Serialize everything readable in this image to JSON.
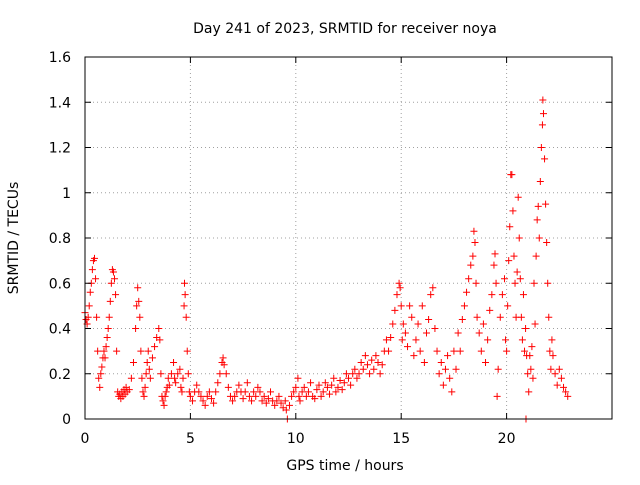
{
  "chart_data": {
    "type": "scatter",
    "title": "Day 241 of 2023, SRMTID for receiver noya",
    "xlabel": "GPS time / hours",
    "ylabel": "SRMTID / TECUs",
    "xlim": [
      0,
      25
    ],
    "ylim": [
      0,
      1.6
    ],
    "x_ticks": [
      0,
      5,
      10,
      15,
      20
    ],
    "x_tick_labels": [
      "0",
      "5",
      "10",
      "15",
      "20"
    ],
    "y_ticks": [
      0,
      0.2,
      0.4,
      0.6,
      0.8,
      1.0,
      1.2,
      1.4,
      1.6
    ],
    "y_tick_labels": [
      "0",
      "0.2",
      "0.4",
      "0.6",
      "0.8",
      "1",
      "1.2",
      "1.4",
      "1.6"
    ],
    "grid": true,
    "marker": "plus",
    "color": "#ff0000",
    "series": [
      {
        "name": "SRMTID",
        "points": [
          [
            0.0,
            0.47
          ],
          [
            0.05,
            0.44
          ],
          [
            0.1,
            0.42
          ],
          [
            0.15,
            0.45
          ],
          [
            0.2,
            0.5
          ],
          [
            0.25,
            0.56
          ],
          [
            0.3,
            0.6
          ],
          [
            0.35,
            0.66
          ],
          [
            0.4,
            0.7
          ],
          [
            0.45,
            0.71
          ],
          [
            0.5,
            0.62
          ],
          [
            0.55,
            0.45
          ],
          [
            0.6,
            0.3
          ],
          [
            0.65,
            0.18
          ],
          [
            0.7,
            0.14
          ],
          [
            0.75,
            0.2
          ],
          [
            0.8,
            0.23
          ],
          [
            0.85,
            0.27
          ],
          [
            0.9,
            0.3
          ],
          [
            0.95,
            0.27
          ],
          [
            1.0,
            0.32
          ],
          [
            1.05,
            0.36
          ],
          [
            1.1,
            0.4
          ],
          [
            1.15,
            0.45
          ],
          [
            1.2,
            0.52
          ],
          [
            1.25,
            0.6
          ],
          [
            1.3,
            0.66
          ],
          [
            1.35,
            0.65
          ],
          [
            1.4,
            0.62
          ],
          [
            1.45,
            0.55
          ],
          [
            1.5,
            0.3
          ],
          [
            1.55,
            0.12
          ],
          [
            1.6,
            0.1
          ],
          [
            1.65,
            0.11
          ],
          [
            1.7,
            0.09
          ],
          [
            1.75,
            0.12
          ],
          [
            1.8,
            0.1
          ],
          [
            1.85,
            0.13
          ],
          [
            1.9,
            0.11
          ],
          [
            1.95,
            0.14
          ],
          [
            2.0,
            0.12
          ],
          [
            2.1,
            0.13
          ],
          [
            2.2,
            0.18
          ],
          [
            2.3,
            0.25
          ],
          [
            2.4,
            0.4
          ],
          [
            2.45,
            0.5
          ],
          [
            2.5,
            0.58
          ],
          [
            2.55,
            0.52
          ],
          [
            2.6,
            0.45
          ],
          [
            2.65,
            0.3
          ],
          [
            2.7,
            0.18
          ],
          [
            2.75,
            0.12
          ],
          [
            2.8,
            0.1
          ],
          [
            2.85,
            0.14
          ],
          [
            2.9,
            0.2
          ],
          [
            2.95,
            0.25
          ],
          [
            3.0,
            0.3
          ],
          [
            3.05,
            0.22
          ],
          [
            3.1,
            0.18
          ],
          [
            3.2,
            0.27
          ],
          [
            3.3,
            0.32
          ],
          [
            3.4,
            0.36
          ],
          [
            3.5,
            0.4
          ],
          [
            3.55,
            0.35
          ],
          [
            3.6,
            0.2
          ],
          [
            3.65,
            0.1
          ],
          [
            3.7,
            0.08
          ],
          [
            3.75,
            0.06
          ],
          [
            3.8,
            0.1
          ],
          [
            3.85,
            0.12
          ],
          [
            3.9,
            0.14
          ],
          [
            3.95,
            0.18
          ],
          [
            4.0,
            0.15
          ],
          [
            4.1,
            0.2
          ],
          [
            4.2,
            0.25
          ],
          [
            4.25,
            0.18
          ],
          [
            4.3,
            0.16
          ],
          [
            4.4,
            0.2
          ],
          [
            4.5,
            0.22
          ],
          [
            4.55,
            0.14
          ],
          [
            4.6,
            0.12
          ],
          [
            4.65,
            0.18
          ],
          [
            4.7,
            0.5
          ],
          [
            4.72,
            0.6
          ],
          [
            4.75,
            0.55
          ],
          [
            4.8,
            0.45
          ],
          [
            4.85,
            0.3
          ],
          [
            4.9,
            0.2
          ],
          [
            4.95,
            0.12
          ],
          [
            5.0,
            0.1
          ],
          [
            5.1,
            0.08
          ],
          [
            5.2,
            0.12
          ],
          [
            5.3,
            0.15
          ],
          [
            5.4,
            0.12
          ],
          [
            5.5,
            0.1
          ],
          [
            5.6,
            0.08
          ],
          [
            5.7,
            0.06
          ],
          [
            5.8,
            0.1
          ],
          [
            5.9,
            0.12
          ],
          [
            6.0,
            0.09
          ],
          [
            6.1,
            0.07
          ],
          [
            6.2,
            0.12
          ],
          [
            6.3,
            0.16
          ],
          [
            6.4,
            0.2
          ],
          [
            6.5,
            0.25
          ],
          [
            6.55,
            0.27
          ],
          [
            6.6,
            0.24
          ],
          [
            6.7,
            0.2
          ],
          [
            6.8,
            0.14
          ],
          [
            6.9,
            0.1
          ],
          [
            7.0,
            0.08
          ],
          [
            7.1,
            0.1
          ],
          [
            7.2,
            0.12
          ],
          [
            7.3,
            0.15
          ],
          [
            7.4,
            0.12
          ],
          [
            7.5,
            0.09
          ],
          [
            7.6,
            0.12
          ],
          [
            7.7,
            0.16
          ],
          [
            7.8,
            0.1
          ],
          [
            7.9,
            0.08
          ],
          [
            8.0,
            0.12
          ],
          [
            8.1,
            0.1
          ],
          [
            8.2,
            0.14
          ],
          [
            8.3,
            0.12
          ],
          [
            8.4,
            0.08
          ],
          [
            8.5,
            0.1
          ],
          [
            8.6,
            0.07
          ],
          [
            8.7,
            0.09
          ],
          [
            8.8,
            0.12
          ],
          [
            8.9,
            0.08
          ],
          [
            9.0,
            0.06
          ],
          [
            9.1,
            0.08
          ],
          [
            9.2,
            0.1
          ],
          [
            9.3,
            0.07
          ],
          [
            9.4,
            0.05
          ],
          [
            9.5,
            0.08
          ],
          [
            9.55,
            0.04
          ],
          [
            9.6,
            0.0
          ],
          [
            9.7,
            0.06
          ],
          [
            9.8,
            0.1
          ],
          [
            9.9,
            0.12
          ],
          [
            10.0,
            0.14
          ],
          [
            10.1,
            0.18
          ],
          [
            10.15,
            0.1
          ],
          [
            10.2,
            0.08
          ],
          [
            10.3,
            0.12
          ],
          [
            10.4,
            0.14
          ],
          [
            10.5,
            0.1
          ],
          [
            10.6,
            0.12
          ],
          [
            10.7,
            0.16
          ],
          [
            10.8,
            0.1
          ],
          [
            10.9,
            0.09
          ],
          [
            11.0,
            0.13
          ],
          [
            11.1,
            0.15
          ],
          [
            11.2,
            0.1
          ],
          [
            11.3,
            0.12
          ],
          [
            11.4,
            0.16
          ],
          [
            11.5,
            0.14
          ],
          [
            11.6,
            0.11
          ],
          [
            11.7,
            0.15
          ],
          [
            11.8,
            0.18
          ],
          [
            11.9,
            0.12
          ],
          [
            12.0,
            0.14
          ],
          [
            12.1,
            0.17
          ],
          [
            12.2,
            0.13
          ],
          [
            12.3,
            0.16
          ],
          [
            12.4,
            0.2
          ],
          [
            12.5,
            0.18
          ],
          [
            12.6,
            0.15
          ],
          [
            12.7,
            0.2
          ],
          [
            12.8,
            0.22
          ],
          [
            12.9,
            0.18
          ],
          [
            13.0,
            0.2
          ],
          [
            13.1,
            0.25
          ],
          [
            13.2,
            0.22
          ],
          [
            13.3,
            0.28
          ],
          [
            13.4,
            0.24
          ],
          [
            13.5,
            0.2
          ],
          [
            13.6,
            0.26
          ],
          [
            13.7,
            0.22
          ],
          [
            13.8,
            0.28
          ],
          [
            13.9,
            0.25
          ],
          [
            14.0,
            0.2
          ],
          [
            14.1,
            0.24
          ],
          [
            14.2,
            0.3
          ],
          [
            14.3,
            0.35
          ],
          [
            14.4,
            0.3
          ],
          [
            14.5,
            0.36
          ],
          [
            14.6,
            0.42
          ],
          [
            14.7,
            0.48
          ],
          [
            14.8,
            0.55
          ],
          [
            14.9,
            0.6
          ],
          [
            14.95,
            0.58
          ],
          [
            15.0,
            0.5
          ],
          [
            15.05,
            0.35
          ],
          [
            15.1,
            0.42
          ],
          [
            15.2,
            0.38
          ],
          [
            15.3,
            0.32
          ],
          [
            15.4,
            0.5
          ],
          [
            15.5,
            0.45
          ],
          [
            15.6,
            0.28
          ],
          [
            15.7,
            0.35
          ],
          [
            15.8,
            0.42
          ],
          [
            15.9,
            0.3
          ],
          [
            16.0,
            0.5
          ],
          [
            16.1,
            0.25
          ],
          [
            16.2,
            0.38
          ],
          [
            16.3,
            0.44
          ],
          [
            16.4,
            0.55
          ],
          [
            16.5,
            0.58
          ],
          [
            16.6,
            0.4
          ],
          [
            16.7,
            0.3
          ],
          [
            16.8,
            0.2
          ],
          [
            16.9,
            0.25
          ],
          [
            17.0,
            0.15
          ],
          [
            17.1,
            0.22
          ],
          [
            17.2,
            0.28
          ],
          [
            17.3,
            0.18
          ],
          [
            17.4,
            0.12
          ],
          [
            17.5,
            0.3
          ],
          [
            17.6,
            0.22
          ],
          [
            17.7,
            0.38
          ],
          [
            17.8,
            0.3
          ],
          [
            17.9,
            0.44
          ],
          [
            18.0,
            0.5
          ],
          [
            18.1,
            0.56
          ],
          [
            18.2,
            0.62
          ],
          [
            18.3,
            0.68
          ],
          [
            18.4,
            0.72
          ],
          [
            18.45,
            0.83
          ],
          [
            18.5,
            0.78
          ],
          [
            18.55,
            0.6
          ],
          [
            18.6,
            0.45
          ],
          [
            18.7,
            0.38
          ],
          [
            18.8,
            0.3
          ],
          [
            18.9,
            0.42
          ],
          [
            19.0,
            0.25
          ],
          [
            19.1,
            0.35
          ],
          [
            19.2,
            0.48
          ],
          [
            19.3,
            0.55
          ],
          [
            19.4,
            0.68
          ],
          [
            19.45,
            0.73
          ],
          [
            19.5,
            0.6
          ],
          [
            19.55,
            0.1
          ],
          [
            19.6,
            0.22
          ],
          [
            19.7,
            0.45
          ],
          [
            19.8,
            0.55
          ],
          [
            19.9,
            0.62
          ],
          [
            19.95,
            0.35
          ],
          [
            20.0,
            0.3
          ],
          [
            20.05,
            0.5
          ],
          [
            20.1,
            0.7
          ],
          [
            20.15,
            0.85
          ],
          [
            20.2,
            1.08
          ],
          [
            20.25,
            1.08
          ],
          [
            20.3,
            0.92
          ],
          [
            20.35,
            0.72
          ],
          [
            20.4,
            0.6
          ],
          [
            20.45,
            0.45
          ],
          [
            20.5,
            0.65
          ],
          [
            20.55,
            0.98
          ],
          [
            20.6,
            0.8
          ],
          [
            20.65,
            0.62
          ],
          [
            20.7,
            0.45
          ],
          [
            20.75,
            0.35
          ],
          [
            20.8,
            0.55
          ],
          [
            20.85,
            0.3
          ],
          [
            20.9,
            0.4
          ],
          [
            20.92,
            0.0
          ],
          [
            20.95,
            0.28
          ],
          [
            21.0,
            0.2
          ],
          [
            21.05,
            0.12
          ],
          [
            21.1,
            0.28
          ],
          [
            21.15,
            0.22
          ],
          [
            21.2,
            0.32
          ],
          [
            21.25,
            0.18
          ],
          [
            21.3,
            0.6
          ],
          [
            21.35,
            0.42
          ],
          [
            21.4,
            0.72
          ],
          [
            21.45,
            0.88
          ],
          [
            21.5,
            0.94
          ],
          [
            21.55,
            0.8
          ],
          [
            21.6,
            1.05
          ],
          [
            21.65,
            1.2
          ],
          [
            21.7,
            1.3
          ],
          [
            21.72,
            1.41
          ],
          [
            21.75,
            1.35
          ],
          [
            21.8,
            1.15
          ],
          [
            21.85,
            0.95
          ],
          [
            21.9,
            0.78
          ],
          [
            21.95,
            0.6
          ],
          [
            22.0,
            0.45
          ],
          [
            22.05,
            0.3
          ],
          [
            22.1,
            0.22
          ],
          [
            22.15,
            0.35
          ],
          [
            22.2,
            0.28
          ],
          [
            22.3,
            0.2
          ],
          [
            22.4,
            0.15
          ],
          [
            22.5,
            0.22
          ],
          [
            22.6,
            0.18
          ],
          [
            22.7,
            0.14
          ],
          [
            22.8,
            0.12
          ],
          [
            22.9,
            0.1
          ]
        ]
      }
    ]
  }
}
